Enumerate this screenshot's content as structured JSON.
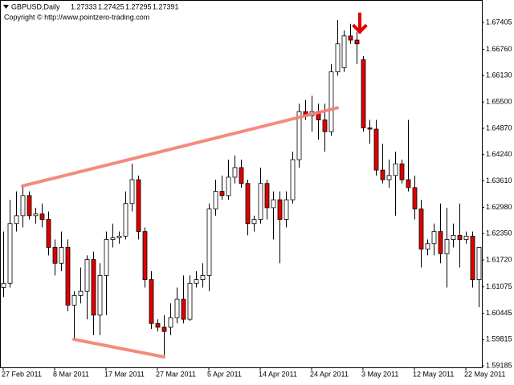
{
  "chart_data": {
    "type": "candlestick",
    "symbol": "GBPUSD,Daily",
    "info_values": [
      1.27333,
      1.27425,
      1.27295,
      1.27391
    ],
    "copyright": "Copyright © http://www.pointzero-trading.com",
    "categories": [
      "27 Feb 2011",
      null,
      null,
      null,
      null,
      null,
      null,
      null,
      "8 Mar 2011",
      null,
      null,
      null,
      null,
      null,
      null,
      null,
      "17 Mar 2011",
      null,
      null,
      null,
      null,
      null,
      null,
      null,
      "27 Mar 2011",
      null,
      null,
      null,
      null,
      null,
      null,
      null,
      "5 Apr 2011",
      null,
      null,
      null,
      null,
      null,
      null,
      null,
      "14 Apr 2011",
      null,
      null,
      null,
      null,
      null,
      null,
      null,
      "24 Apr 2011",
      null,
      null,
      null,
      null,
      null,
      null,
      null,
      "3 May 2011",
      null,
      null,
      null,
      null,
      null,
      null,
      null,
      "12 May 2011",
      null,
      null,
      null,
      null,
      null,
      null,
      null,
      "22 May 2011",
      null,
      null
    ],
    "open": [
      1.6106,
      1.6116,
      1.6259,
      1.6278,
      1.6326,
      1.6278,
      1.6282,
      1.6269,
      1.6202,
      1.6164,
      1.6202,
      1.6064,
      1.6087,
      1.6097,
      1.6173,
      1.604,
      1.6135,
      1.6221,
      1.6225,
      1.6229,
      1.6307,
      1.6364,
      1.624,
      1.6125,
      1.602,
      1.6011,
      1.6011,
      1.6034,
      1.6078,
      1.603,
      1.6116,
      1.6125,
      1.6135,
      1.6294,
      1.6336,
      1.6326,
      1.637,
      1.6393,
      1.6355,
      1.6259,
      1.6269,
      1.6355,
      1.6297,
      1.6316,
      1.6269,
      1.6316,
      1.6412,
      1.6527,
      1.6517,
      1.6527,
      1.6507,
      1.6479,
      1.6622,
      1.6632,
      1.6708,
      1.6698,
      1.6651,
      1.6488,
      1.6485,
      1.6387,
      1.6364,
      1.6374,
      1.6402,
      1.6364,
      1.6345,
      1.6294,
      1.6198,
      1.6211,
      1.624,
      1.6187,
      1.6221,
      1.6231,
      1.6221,
      1.6229,
      1.6125
    ],
    "high": [
      1.624,
      1.6316,
      1.6336,
      1.6349,
      1.6336,
      1.6297,
      1.6307,
      1.6288,
      1.6221,
      1.624,
      1.6221,
      1.6097,
      1.6154,
      1.6183,
      1.6192,
      1.6164,
      1.624,
      1.6259,
      1.624,
      1.6336,
      1.6402,
      1.6374,
      1.625,
      1.6145,
      1.603,
      1.604,
      1.6068,
      1.6106,
      1.6135,
      1.6135,
      1.6145,
      1.6164,
      1.6307,
      1.6364,
      1.6374,
      1.6412,
      1.6422,
      1.6412,
      1.6364,
      1.6278,
      1.6393,
      1.6364,
      1.6336,
      1.6336,
      1.6336,
      1.6431,
      1.6546,
      1.6555,
      1.6565,
      1.6546,
      1.6546,
      1.6641,
      1.6746,
      1.6721,
      1.6737,
      1.6718,
      1.666,
      1.6507,
      1.6507,
      1.645,
      1.6412,
      1.6431,
      1.6412,
      1.6507,
      1.6374,
      1.6316,
      1.6221,
      1.6259,
      1.6307,
      1.6297,
      1.6259,
      1.6307,
      1.624,
      1.624,
      1.6202
    ],
    "low": [
      1.6083,
      1.6106,
      1.624,
      1.625,
      1.6269,
      1.6259,
      1.625,
      1.6183,
      1.6135,
      1.6145,
      1.6049,
      1.5982,
      1.6068,
      1.603,
      1.5992,
      1.5992,
      1.604,
      1.6202,
      1.6211,
      1.6221,
      1.6288,
      1.6221,
      1.6106,
      1.6007,
      1.6001,
      1.5944,
      1.5992,
      1.602,
      1.602,
      1.6026,
      1.6106,
      1.6106,
      1.6097,
      1.6278,
      1.6316,
      1.6316,
      1.6355,
      1.6345,
      1.6231,
      1.624,
      1.6259,
      1.6269,
      1.6221,
      1.6164,
      1.625,
      1.6307,
      1.6393,
      1.6507,
      1.6479,
      1.646,
      1.6431,
      1.6469,
      1.6613,
      1.6622,
      1.6689,
      1.6641,
      1.6479,
      1.645,
      1.6374,
      1.6355,
      1.6345,
      1.6278,
      1.6355,
      1.6336,
      1.6269,
      1.6154,
      1.6183,
      1.6183,
      1.6164,
      1.6106,
      1.6202,
      1.6154,
      1.6211,
      1.6106,
      1.6059
    ],
    "close": [
      1.6116,
      1.6259,
      1.6278,
      1.6326,
      1.6278,
      1.6282,
      1.6269,
      1.6202,
      1.6164,
      1.6202,
      1.6064,
      1.6087,
      1.6097,
      1.6173,
      1.604,
      1.6135,
      1.6221,
      1.6225,
      1.6229,
      1.6307,
      1.6364,
      1.624,
      1.6125,
      1.602,
      1.6011,
      1.6001,
      1.6034,
      1.6078,
      1.603,
      1.6116,
      1.6125,
      1.6135,
      1.6294,
      1.6336,
      1.6326,
      1.637,
      1.6393,
      1.6355,
      1.6259,
      1.6269,
      1.6355,
      1.6297,
      1.6316,
      1.6269,
      1.6316,
      1.6412,
      1.6527,
      1.6517,
      1.6527,
      1.6507,
      1.6479,
      1.6622,
      1.6689,
      1.6708,
      1.6698,
      1.6689,
      1.6488,
      1.6485,
      1.6387,
      1.6364,
      1.6374,
      1.6402,
      1.6364,
      1.6345,
      1.6294,
      1.6198,
      1.6211,
      1.624,
      1.6187,
      1.6221,
      1.6231,
      1.6221,
      1.6229,
      1.6125,
      1.6202
    ],
    "up_color": "#ffffff",
    "down_color": "#e00000",
    "trendlines": [
      {
        "color": "#f08070",
        "index": [
          3,
          52
        ],
        "values": [
          1.6349,
          1.6536
        ]
      },
      {
        "color": "#f08070",
        "index": [
          11,
          25
        ],
        "values": [
          1.5982,
          1.594
        ]
      }
    ],
    "signal": {
      "index": 55,
      "value": 1.6718,
      "color": "#e00000"
    },
    "ylim": [
      1.5915,
      1.6794
    ],
    "yticks": [
      1.67405,
      {
        "value": 1.6676,
        "label": "1.66760"
      },
      {
        "value": 1.6613,
        "label": "1.66130"
      },
      {
        "value": 1.655,
        "label": "1.65500"
      },
      {
        "value": 1.6487,
        "label": "1.64870"
      },
      {
        "value": 1.6424,
        "label": "1.64240"
      },
      {
        "value": 1.6361,
        "label": "1.63610"
      },
      {
        "value": 1.6298,
        "label": "1.62980"
      },
      {
        "value": 1.6235,
        "label": "1.62350"
      },
      {
        "value": 1.6172,
        "label": "1.61720"
      },
      1.61075,
      1.60445,
      1.59815,
      1.59185
    ]
  }
}
